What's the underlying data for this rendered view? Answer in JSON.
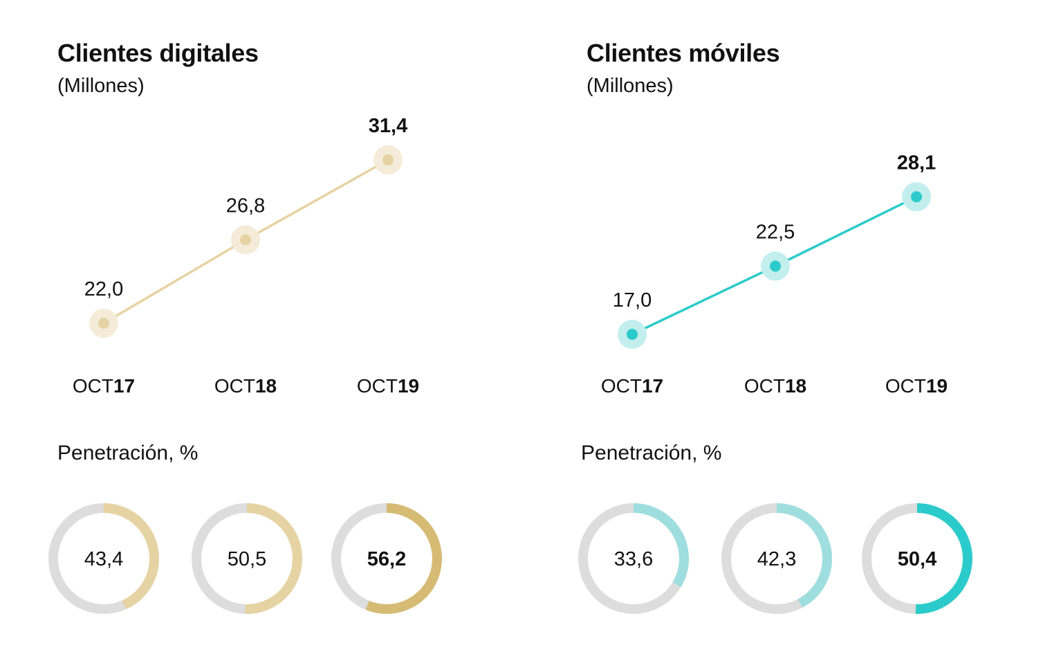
{
  "chart_data": [
    {
      "type": "line",
      "title": "Clientes digitales",
      "subtitle": "(Millones)",
      "x": [
        {
          "prefix": "OCT",
          "year": "17"
        },
        {
          "prefix": "OCT",
          "year": "18"
        },
        {
          "prefix": "OCT",
          "year": "19"
        }
      ],
      "values": [
        22.0,
        26.8,
        31.4
      ],
      "value_labels": [
        "22,0",
        "26,8",
        "31,4"
      ],
      "colors": {
        "line": "#e6d3a3",
        "dot": "#e6d3a3",
        "halo": "#f4ecd8"
      },
      "penetration": {
        "title": "Penetración, %",
        "values": [
          43.4,
          50.5,
          56.2
        ],
        "labels": [
          "43,4",
          "50,5",
          "56,2"
        ],
        "colors": [
          "#e6d3a3",
          "#e6d3a3",
          "#d6bb74"
        ],
        "track_color": "#dddddd"
      }
    },
    {
      "type": "line",
      "title": "Clientes móviles",
      "subtitle": "(Millones)",
      "x": [
        {
          "prefix": "OCT",
          "year": "17"
        },
        {
          "prefix": "OCT",
          "year": "18"
        },
        {
          "prefix": "OCT",
          "year": "19"
        }
      ],
      "values": [
        17.0,
        22.5,
        28.1
      ],
      "value_labels": [
        "17,0",
        "22,5",
        "28,1"
      ],
      "colors": {
        "line": "#2ccbcb",
        "dot": "#2ccbcb",
        "halo": "#c2eeee"
      },
      "penetration": {
        "title": "Penetración, %",
        "values": [
          33.6,
          42.3,
          50.4
        ],
        "labels": [
          "33,6",
          "42,3",
          "50,4"
        ],
        "colors": [
          "#9fdede",
          "#9fdede",
          "#2ccbcb"
        ],
        "track_color": "#dddddd"
      }
    }
  ]
}
